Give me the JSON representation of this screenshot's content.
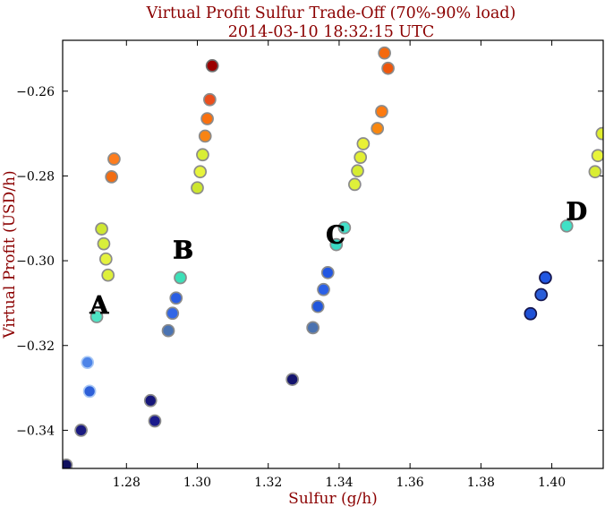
{
  "chart_data": {
    "type": "scatter",
    "title": "Virtual Profit Sulfur Trade-Off (70%-90% load)",
    "subtitle": "2014-03-10 18:32:15 UTC",
    "xlabel": "Sulfur (g/h)",
    "ylabel": "Virtual Profit (USD/h)",
    "xlim": [
      1.262,
      1.4145
    ],
    "ylim": [
      -0.349,
      -0.248
    ],
    "grid": false,
    "legend": null,
    "title_color": "#8b0000",
    "axis_label_color": "#8b0000",
    "tick_label_color": "#000000",
    "marker_edge_default": "#8b8b8b",
    "marker_radius": 6.5,
    "xticks": [
      {
        "v": 1.28,
        "label": "1.28"
      },
      {
        "v": 1.3,
        "label": "1.30"
      },
      {
        "v": 1.32,
        "label": "1.32"
      },
      {
        "v": 1.34,
        "label": "1.34"
      },
      {
        "v": 1.36,
        "label": "1.36"
      },
      {
        "v": 1.38,
        "label": "1.38"
      },
      {
        "v": 1.4,
        "label": "1.40"
      }
    ],
    "yticks": [
      {
        "v": -0.26,
        "label": "−0.26"
      },
      {
        "v": -0.28,
        "label": "−0.28"
      },
      {
        "v": -0.3,
        "label": "−0.30"
      },
      {
        "v": -0.32,
        "label": "−0.32"
      },
      {
        "v": -0.34,
        "label": "−0.34"
      }
    ],
    "clusters": [
      {
        "name": "A",
        "label": "A",
        "label_x": 1.2723,
        "label_y": -0.3105,
        "points": [
          [
            1.2765,
            -0.276,
            "#fd7d1e"
          ],
          [
            1.2758,
            -0.2802,
            "#f26d12"
          ],
          [
            1.273,
            -0.2925,
            "#cfe732"
          ],
          [
            1.2736,
            -0.296,
            "#d8ee3a"
          ],
          [
            1.2742,
            -0.2996,
            "#e4f23e"
          ],
          [
            1.2748,
            -0.3034,
            "#def03a"
          ],
          [
            1.2716,
            -0.3132,
            "#4fe3c4"
          ],
          [
            1.269,
            -0.324,
            "#4d84e8",
            "#a9c8f5"
          ],
          [
            1.2696,
            -0.3308,
            "#2d5fd8",
            "#a9c8f5"
          ],
          [
            1.2672,
            -0.34,
            "#1a1a80"
          ],
          [
            1.263,
            -0.3482,
            "#10105e"
          ]
        ]
      },
      {
        "name": "B",
        "label": "B",
        "label_x": 1.296,
        "label_y": -0.2975,
        "points": [
          [
            1.3042,
            -0.254,
            "#9b0000",
            "#6e6e6e"
          ],
          [
            1.3035,
            -0.262,
            "#ea4e1c"
          ],
          [
            1.3028,
            -0.2665,
            "#f9700e"
          ],
          [
            1.3022,
            -0.2706,
            "#f88413"
          ],
          [
            1.3015,
            -0.275,
            "#d8ee35"
          ],
          [
            1.3008,
            -0.279,
            "#e7f43c"
          ],
          [
            1.3,
            -0.2828,
            "#cde62e"
          ],
          [
            1.2952,
            -0.304,
            "#3ce0b8"
          ],
          [
            1.294,
            -0.3088,
            "#2a5de2"
          ],
          [
            1.293,
            -0.3124,
            "#3166e6"
          ],
          [
            1.2918,
            -0.3165,
            "#4a73b2"
          ],
          [
            1.2868,
            -0.333,
            "#16167a"
          ],
          [
            1.288,
            -0.3378,
            "#1b1b8c"
          ]
        ]
      },
      {
        "name": "C",
        "label": "C",
        "label_x": 1.339,
        "label_y": -0.294,
        "points": [
          [
            1.3528,
            -0.251,
            "#f4690e"
          ],
          [
            1.3538,
            -0.2546,
            "#ee570c"
          ],
          [
            1.352,
            -0.2648,
            "#fd7a10"
          ],
          [
            1.3508,
            -0.2688,
            "#f9870f"
          ],
          [
            1.3468,
            -0.2724,
            "#e9f136"
          ],
          [
            1.346,
            -0.2756,
            "#e2ef33"
          ],
          [
            1.3452,
            -0.2788,
            "#d6ec31"
          ],
          [
            1.3444,
            -0.282,
            "#def03a"
          ],
          [
            1.3415,
            -0.2922,
            "#44e1ca"
          ],
          [
            1.3392,
            -0.2962,
            "#39d9c3"
          ],
          [
            1.3368,
            -0.3028,
            "#2357e2"
          ],
          [
            1.3356,
            -0.3068,
            "#2b60e6"
          ],
          [
            1.334,
            -0.3108,
            "#2257dc"
          ],
          [
            1.3326,
            -0.3158,
            "#4a72b0"
          ],
          [
            1.3268,
            -0.328,
            "#14146e"
          ]
        ]
      },
      {
        "name": "D",
        "label": "D",
        "label_x": 1.407,
        "label_y": -0.2885,
        "points": [
          [
            1.4142,
            -0.27,
            "#e0ee2e"
          ],
          [
            1.413,
            -0.2752,
            "#e8f43a"
          ],
          [
            1.4122,
            -0.279,
            "#d9ed33"
          ],
          [
            1.4042,
            -0.2918,
            "#3fe1c6"
          ],
          [
            1.3982,
            -0.304,
            "#2157e2",
            "#15154d"
          ],
          [
            1.397,
            -0.308,
            "#2a5dd8",
            "#15154d"
          ],
          [
            1.394,
            -0.3125,
            "#1f51d6",
            "#15154d"
          ]
        ]
      }
    ]
  }
}
